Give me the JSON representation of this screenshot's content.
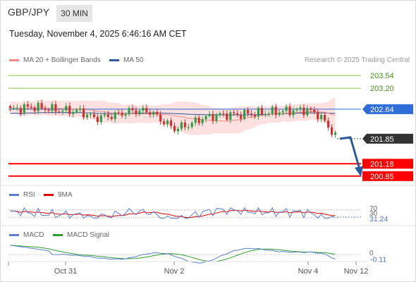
{
  "header": {
    "symbol": "GBP/JPY",
    "timeframe": "30 MIN",
    "datetime": "Tuesday, November 4, 2025 6:46:16 AM CET"
  },
  "legend": {
    "ma20": {
      "label": "MA 20 + Bollinger Bands",
      "color": "#f28b82"
    },
    "ma50": {
      "label": "MA 50",
      "color": "#2c5a9a"
    },
    "credit": "Research © 2025 Trading Central"
  },
  "colors": {
    "up": "#2e9e46",
    "down": "#d32f2f",
    "band": "#fde0e0",
    "resistance": "#8bc34a",
    "support": "#ff0000",
    "current": "#2f6ed8",
    "forecast": "#2c5a9a",
    "dark": "#333333"
  },
  "chart_data": [
    {
      "type": "candlestick",
      "ylim": [
        200.62,
        203.9
      ],
      "x_ticks": [
        "Oct 31",
        "Nov 2",
        "Nov 4",
        "Nov 12"
      ],
      "levels": [
        {
          "name": "resistance 2",
          "value": 203.54,
          "label": "203.54",
          "style": "resistance"
        },
        {
          "name": "resistance 1",
          "value": 203.2,
          "label": "203.20",
          "style": "resistance"
        },
        {
          "name": "current",
          "value": 202.64,
          "label": "202.64",
          "style": "current"
        },
        {
          "name": "pivot",
          "value": 201.85,
          "label": "201.85",
          "style": "dark"
        },
        {
          "name": "support 1",
          "value": 201.18,
          "label": "201.18",
          "style": "support"
        },
        {
          "name": "support 2",
          "value": 200.85,
          "label": "200.85",
          "style": "support"
        }
      ],
      "forecast": {
        "from": 201.85,
        "to": 200.85
      }
    },
    {
      "type": "line",
      "legend": [
        {
          "label": "RSI",
          "color": "#5b7fcf"
        },
        {
          "label": "9MA",
          "color": "#e00000"
        }
      ],
      "ticks": [
        "70",
        "30"
      ],
      "last_value": "31.24"
    },
    {
      "type": "line",
      "legend": [
        {
          "label": "MACD",
          "color": "#5b7fcf"
        },
        {
          "label": "MACD Signal",
          "color": "#2e9e2e"
        }
      ],
      "ticks": [
        "0"
      ],
      "last_value": "-0.11"
    }
  ]
}
